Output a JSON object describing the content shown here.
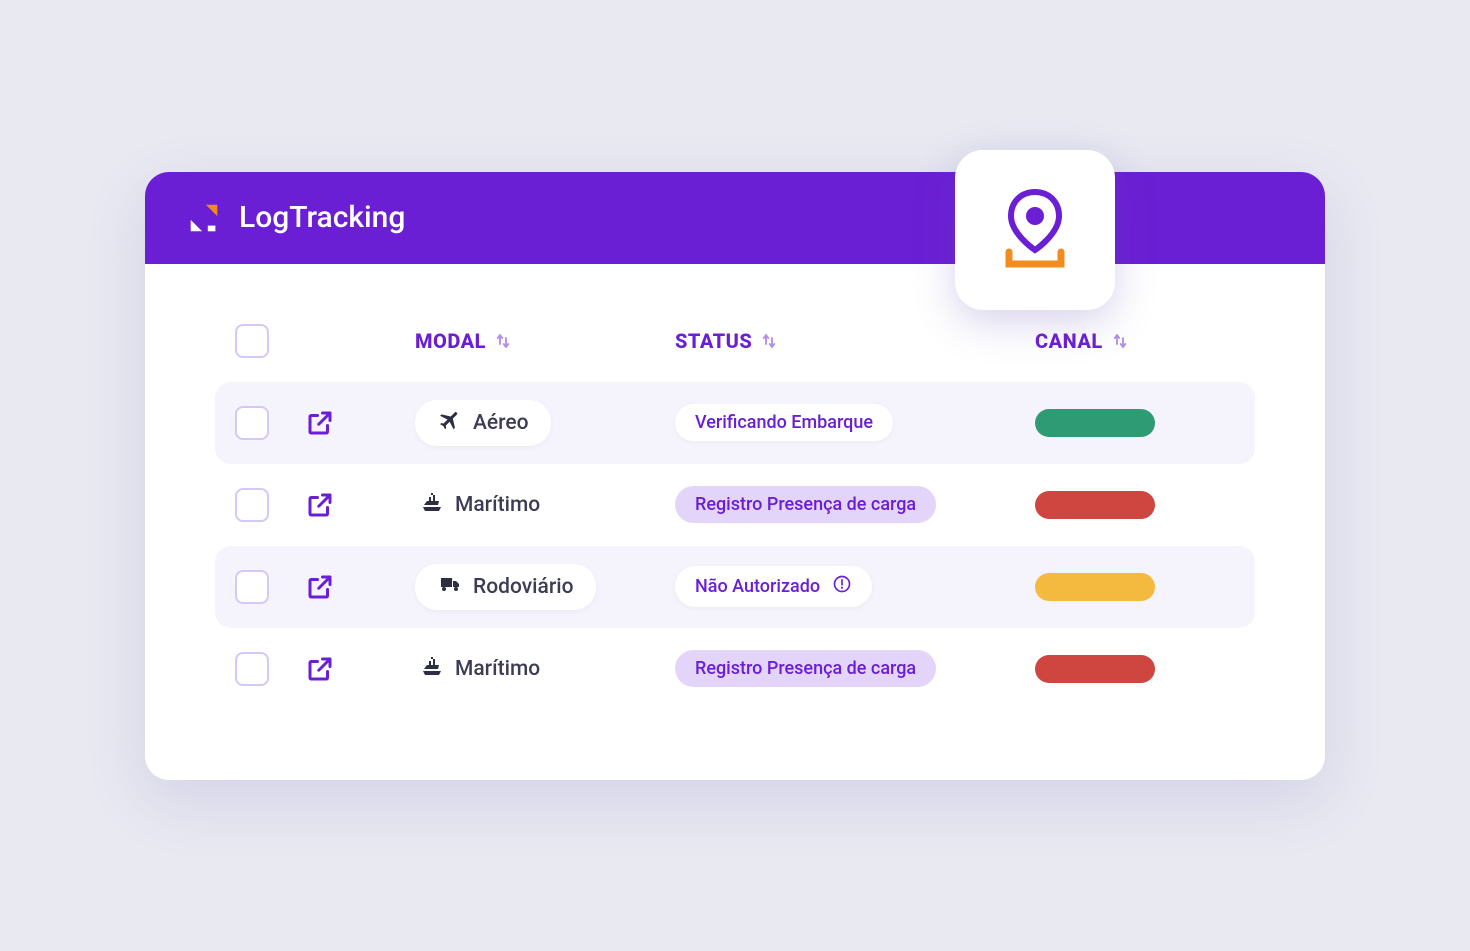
{
  "app": {
    "title": "LogTracking"
  },
  "colors": {
    "brand_purple": "#6b1fd4",
    "logo_orange": "#f28c1f",
    "page_bg": "#e8e9f1",
    "row_shaded": "#f5f3fb",
    "checkbox_border": "#d6c8f5",
    "text_dark": "#3c3c55",
    "status_white_bg": "#ffffff",
    "status_purple_bg": "#e3d5fa",
    "canal_green": "#2f9b74",
    "canal_red": "#cf453f",
    "canal_yellow": "#f4b93f"
  },
  "table": {
    "columns": {
      "modal": "MODAL",
      "status": "STATUS",
      "canal": "CANAL"
    },
    "rows": [
      {
        "modal_icon": "plane",
        "modal_label": "Aéreo",
        "modal_pill": true,
        "status_label": "Verificando Embarque",
        "status_variant": "white",
        "status_alert": false,
        "canal_color": "green",
        "shaded": true
      },
      {
        "modal_icon": "ship",
        "modal_label": "Marítimo",
        "modal_pill": false,
        "status_label": "Registro Presença de carga",
        "status_variant": "purple",
        "status_alert": false,
        "canal_color": "red",
        "shaded": false
      },
      {
        "modal_icon": "truck",
        "modal_label": "Rodoviário",
        "modal_pill": true,
        "status_label": "Não Autorizado",
        "status_variant": "white",
        "status_alert": true,
        "canal_color": "yellow",
        "shaded": true
      },
      {
        "modal_icon": "ship",
        "modal_label": "Marítimo",
        "modal_pill": false,
        "status_label": "Registro Presença de carga",
        "status_variant": "purple",
        "status_alert": false,
        "canal_color": "red",
        "shaded": false
      }
    ]
  }
}
